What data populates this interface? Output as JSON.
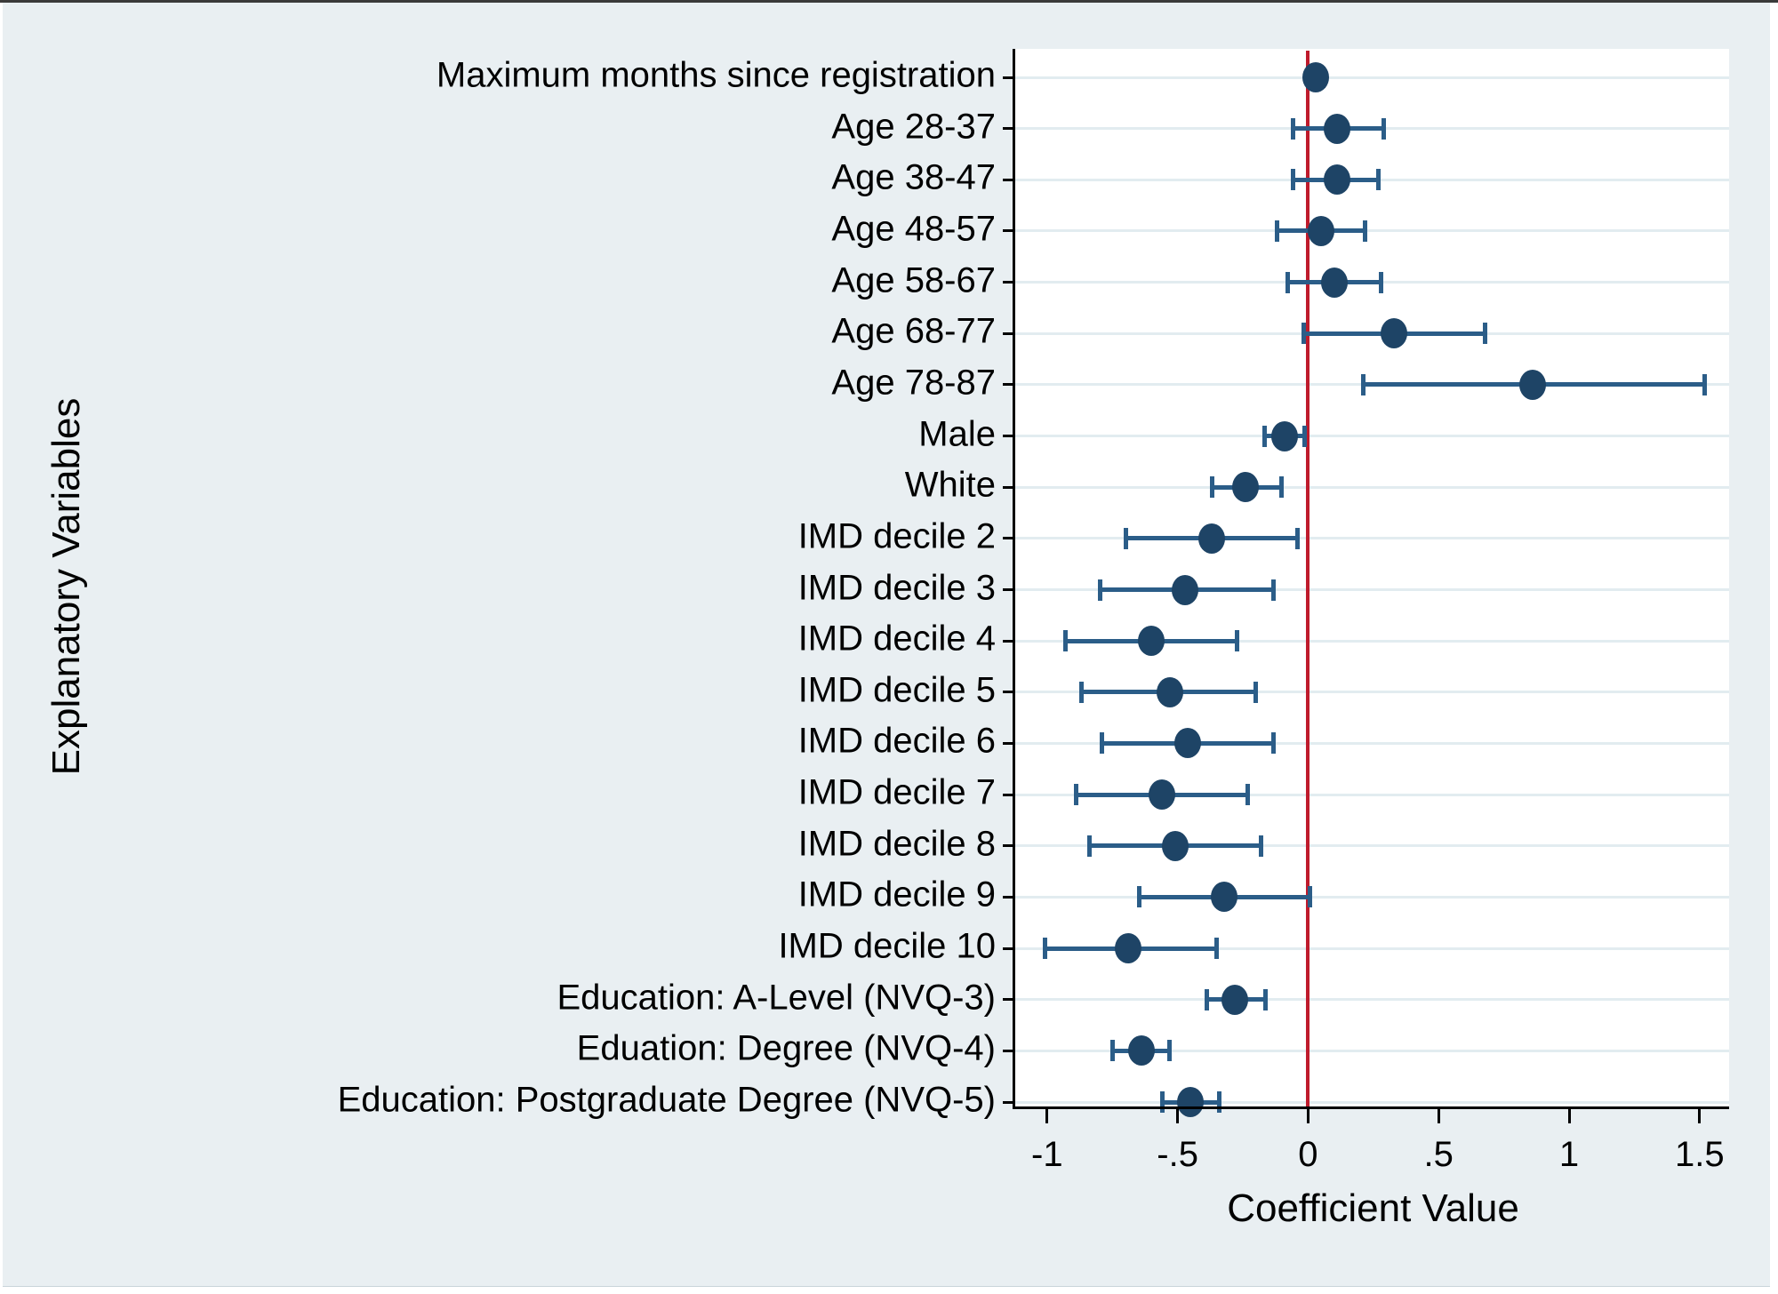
{
  "figure": {
    "background": "#e9eff2",
    "plot_background": "#ffffff",
    "grid_color": "#e2ecf0",
    "marker_color": "#1e4466",
    "ci_line_color": "#2b5d88",
    "zero_line_color": "#bf1b2c",
    "axis_color": "#000000"
  },
  "chart_data": {
    "type": "scatter",
    "subtype": "coefficient-plot-with-95ci",
    "title": "",
    "xlabel": "Coefficient Value",
    "ylabel": "Explanatory Variables",
    "xlim": [
      -1.122,
      1.613
    ],
    "xticks": [
      -1,
      -0.5,
      0,
      0.5,
      1,
      1.5
    ],
    "xtick_labels": [
      "-1",
      "-.5",
      "0",
      ".5",
      "1",
      "1.5"
    ],
    "grid": true,
    "zero_reference_line": 0,
    "legend": "none",
    "points": [
      {
        "label": "Maximum months since registration",
        "value": 0.03,
        "ci_low": 0.0,
        "ci_high": 0.06
      },
      {
        "label": "Age 28-37",
        "value": 0.11,
        "ci_low": -0.06,
        "ci_high": 0.29
      },
      {
        "label": "Age 38-47",
        "value": 0.11,
        "ci_low": -0.06,
        "ci_high": 0.27
      },
      {
        "label": "Age 48-57",
        "value": 0.05,
        "ci_low": -0.12,
        "ci_high": 0.22
      },
      {
        "label": "Age 58-67",
        "value": 0.1,
        "ci_low": -0.08,
        "ci_high": 0.28
      },
      {
        "label": "Age 68-77",
        "value": 0.33,
        "ci_low": -0.02,
        "ci_high": 0.68
      },
      {
        "label": "Age 78-87",
        "value": 0.86,
        "ci_low": 0.21,
        "ci_high": 1.52
      },
      {
        "label": "Male",
        "value": -0.09,
        "ci_low": -0.17,
        "ci_high": -0.01
      },
      {
        "label": "White",
        "value": -0.24,
        "ci_low": -0.37,
        "ci_high": -0.1
      },
      {
        "label": "IMD decile 2",
        "value": -0.37,
        "ci_low": -0.7,
        "ci_high": -0.04
      },
      {
        "label": "IMD decile 3",
        "value": -0.47,
        "ci_low": -0.8,
        "ci_high": -0.13
      },
      {
        "label": "IMD decile 4",
        "value": -0.6,
        "ci_low": -0.93,
        "ci_high": -0.27
      },
      {
        "label": "IMD decile 5",
        "value": -0.53,
        "ci_low": -0.87,
        "ci_high": -0.2
      },
      {
        "label": "IMD decile 6",
        "value": -0.46,
        "ci_low": -0.79,
        "ci_high": -0.13
      },
      {
        "label": "IMD decile 7",
        "value": -0.56,
        "ci_low": -0.89,
        "ci_high": -0.23
      },
      {
        "label": "IMD decile 8",
        "value": -0.51,
        "ci_low": -0.84,
        "ci_high": -0.18
      },
      {
        "label": "IMD decile 9",
        "value": -0.32,
        "ci_low": -0.65,
        "ci_high": 0.01
      },
      {
        "label": "IMD decile 10",
        "value": -0.69,
        "ci_low": -1.01,
        "ci_high": -0.35
      },
      {
        "label": "Education: A-Level (NVQ-3)",
        "value": -0.28,
        "ci_low": -0.39,
        "ci_high": -0.16
      },
      {
        "label": "Eduation: Degree (NVQ-4)",
        "value": -0.64,
        "ci_low": -0.75,
        "ci_high": -0.53
      },
      {
        "label": "Education: Postgraduate Degree (NVQ-5)",
        "value": -0.45,
        "ci_low": -0.56,
        "ci_high": -0.34
      }
    ]
  }
}
